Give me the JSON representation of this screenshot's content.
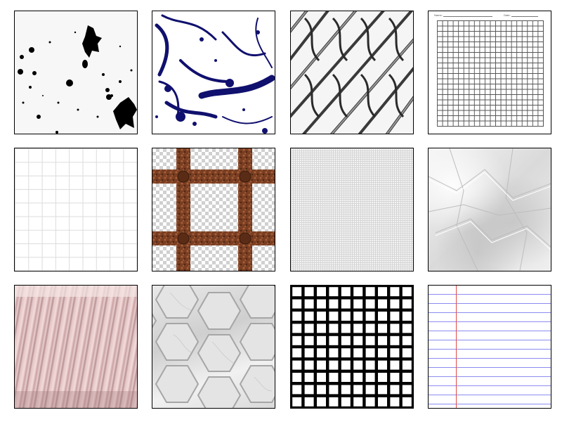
{
  "gallery": {
    "columns": 4,
    "rows": 3,
    "tiles": [
      {
        "texture": "ink-splatter-black-icon",
        "color": "#000000"
      },
      {
        "texture": "paint-splatter-navy-icon",
        "color": "#10106e"
      },
      {
        "texture": "chain-link-fence-icon",
        "color": "#555555"
      },
      {
        "texture": "graph-paper-form-icon",
        "color": "#555555"
      },
      {
        "texture": "light-grid-icon",
        "color": "#dcdcdc"
      },
      {
        "texture": "rusty-grate-icon",
        "color": "#7a3e22"
      },
      {
        "texture": "fine-grid-icon",
        "color": "#d6d6d6"
      },
      {
        "texture": "crumpled-paper-icon",
        "color": "#e0e0e0"
      },
      {
        "texture": "pleated-fabric-icon",
        "color": "#d8b4b4"
      },
      {
        "texture": "hexagon-marble-tiles-icon",
        "color": "#d2d2d2"
      },
      {
        "texture": "black-square-grid-icon",
        "color": "#000000"
      },
      {
        "texture": "ruled-notebook-paper-icon",
        "color": "#8c8cf0"
      }
    ]
  },
  "form": {
    "name_label": "Name:",
    "date_label": "Date:"
  },
  "colors": {
    "margin_line": "#e34a4a",
    "rule_line": "#8c8cf0",
    "rust": "#7a3e22"
  }
}
